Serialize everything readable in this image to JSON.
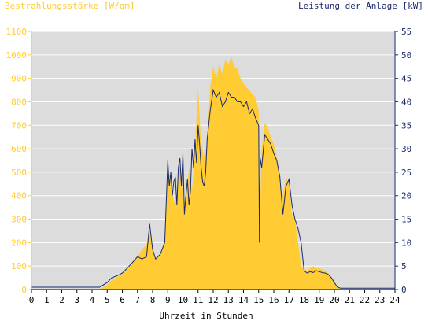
{
  "chart_data": {
    "type": "area",
    "left_title": "Bestrahlungsstärke [W/qm]",
    "right_title": "Leistung der Anlage [kW]",
    "xlabel": "Uhrzeit in Stunden",
    "x_ticks": [
      "0",
      "1",
      "2",
      "3",
      "4",
      "5",
      "6",
      "7",
      "8",
      "9",
      "10",
      "11",
      "12",
      "13",
      "14",
      "15",
      "16",
      "17",
      "18",
      "19",
      "20",
      "21",
      "22",
      "23",
      "24"
    ],
    "y_left_ticks": [
      "0",
      "100",
      "200",
      "300",
      "400",
      "500",
      "600",
      "700",
      "800",
      "900",
      "1000",
      "1100"
    ],
    "y_right_ticks": [
      "0",
      "5",
      "10",
      "15",
      "20",
      "25",
      "30",
      "35",
      "40",
      "45",
      "50",
      "55"
    ],
    "x_range": [
      0,
      24
    ],
    "y_left_range": [
      0,
      1100
    ],
    "y_right_range": [
      0,
      55
    ],
    "colors": {
      "left_axis": "#ffcc33",
      "right_axis": "#1a2a6c",
      "plot_background": "#dcdcdc",
      "grid": "#ffffff",
      "irradiance_fill": "#ffcc33",
      "power_line": "#1a2a6c"
    },
    "series": [
      {
        "axis": "left",
        "x": [
          0,
          4.5,
          5.0,
          5.3,
          5.7,
          6.0,
          6.3,
          6.6,
          7.0,
          7.3,
          7.6,
          7.8,
          8.0,
          8.2,
          8.5,
          8.8,
          9.0,
          9.2,
          9.4,
          9.6,
          9.8,
          10.0,
          10.2,
          10.4,
          10.6,
          10.8,
          11.0,
          11.2,
          11.4,
          11.6,
          11.8,
          12.0,
          12.2,
          12.4,
          12.6,
          12.8,
          13.0,
          13.2,
          13.4,
          13.6,
          13.8,
          14.0,
          14.2,
          14.4,
          14.6,
          14.8,
          15.0,
          15.05,
          15.2,
          15.4,
          15.6,
          15.8,
          16.0,
          16.2,
          16.4,
          16.6,
          16.8,
          17.0,
          17.2,
          17.4,
          17.6,
          17.8,
          18.0,
          18.2,
          18.4,
          18.6,
          18.8,
          19.0,
          19.2,
          19.4,
          19.6,
          19.8,
          20.0,
          20.2,
          20.4,
          20.6,
          21.0,
          24
        ],
        "values": [
          0,
          0,
          20,
          40,
          55,
          65,
          90,
          110,
          140,
          170,
          190,
          260,
          180,
          130,
          150,
          210,
          500,
          480,
          370,
          390,
          560,
          400,
          360,
          520,
          420,
          600,
          860,
          620,
          570,
          620,
          860,
          950,
          900,
          960,
          920,
          980,
          960,
          990,
          950,
          940,
          900,
          880,
          860,
          850,
          830,
          820,
          760,
          200,
          600,
          710,
          690,
          650,
          620,
          560,
          450,
          400,
          480,
          450,
          320,
          300,
          200,
          100,
          90,
          80,
          90,
          100,
          90,
          90,
          85,
          80,
          70,
          50,
          30,
          10,
          0,
          0,
          0,
          0
        ]
      },
      {
        "axis": "right",
        "x": [
          0,
          4.5,
          5.0,
          5.3,
          5.7,
          6.0,
          6.3,
          6.6,
          7.0,
          7.3,
          7.6,
          7.8,
          8.0,
          8.2,
          8.5,
          8.8,
          9.0,
          9.1,
          9.2,
          9.3,
          9.4,
          9.5,
          9.6,
          9.7,
          9.8,
          9.9,
          10.0,
          10.1,
          10.2,
          10.3,
          10.4,
          10.5,
          10.6,
          10.7,
          10.8,
          10.9,
          11.0,
          11.1,
          11.2,
          11.3,
          11.4,
          11.5,
          11.6,
          11.7,
          11.8,
          12.0,
          12.2,
          12.4,
          12.6,
          12.8,
          13.0,
          13.2,
          13.4,
          13.6,
          13.8,
          14.0,
          14.2,
          14.4,
          14.6,
          14.8,
          15.0,
          15.05,
          15.1,
          15.2,
          15.4,
          15.6,
          15.8,
          16.0,
          16.2,
          16.4,
          16.6,
          16.8,
          17.0,
          17.2,
          17.4,
          17.6,
          17.8,
          18.0,
          18.2,
          18.4,
          18.6,
          18.8,
          19.0,
          19.2,
          19.4,
          19.6,
          19.8,
          20.0,
          20.2,
          20.4,
          20.6,
          21.0,
          24
        ],
        "values": [
          0.5,
          0.5,
          1.5,
          2.5,
          3.0,
          3.5,
          4.5,
          5.5,
          7.0,
          6.5,
          7.0,
          14.0,
          8.5,
          6.5,
          7.5,
          10.0,
          27.5,
          22.0,
          25.0,
          20.0,
          23.0,
          24.0,
          18.0,
          26.0,
          28.0,
          22.0,
          29.0,
          16.0,
          20.0,
          23.5,
          18.0,
          21.0,
          30.0,
          26.0,
          32.0,
          27.0,
          35.0,
          31.0,
          26.0,
          23.0,
          22.0,
          25.0,
          32.0,
          35.0,
          38.0,
          42.5,
          41.0,
          42.0,
          39.0,
          40.0,
          42.0,
          41.0,
          41.0,
          40.0,
          40.0,
          39.0,
          40.0,
          37.5,
          38.5,
          36.5,
          35.0,
          10.0,
          28.0,
          26.0,
          33.0,
          32.0,
          31.0,
          29.0,
          27.5,
          24.0,
          16.0,
          22.0,
          23.5,
          18.0,
          15.0,
          13.0,
          10.0,
          4.0,
          3.5,
          3.8,
          3.6,
          4.0,
          3.8,
          3.6,
          3.5,
          3.2,
          2.5,
          1.5,
          0.5,
          0.3,
          0.3,
          0.3,
          0.3
        ]
      }
    ]
  }
}
